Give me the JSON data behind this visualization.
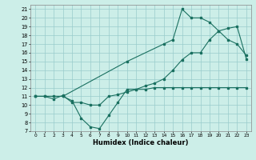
{
  "xlabel": "Humidex (Indice chaleur)",
  "xlim": [
    -0.5,
    23.5
  ],
  "ylim": [
    7,
    21.5
  ],
  "xticks": [
    0,
    1,
    2,
    3,
    4,
    5,
    6,
    7,
    8,
    9,
    10,
    11,
    12,
    13,
    14,
    15,
    16,
    17,
    18,
    19,
    20,
    21,
    22,
    23
  ],
  "yticks": [
    7,
    8,
    9,
    10,
    11,
    12,
    13,
    14,
    15,
    16,
    17,
    18,
    19,
    20,
    21
  ],
  "bg_color": "#cceee8",
  "grid_color": "#99cccc",
  "line_color": "#1a7060",
  "line1_x": [
    0,
    1,
    2,
    3,
    4,
    5,
    6,
    7,
    8,
    9,
    10,
    11,
    12,
    13,
    14,
    15,
    16,
    17,
    18,
    19,
    20,
    21,
    22,
    23
  ],
  "line1_y": [
    11,
    11,
    11,
    11,
    10.5,
    8.5,
    7.5,
    7.3,
    8.8,
    10.3,
    11.8,
    11.8,
    11.8,
    12.0,
    12.0,
    12.0,
    12.0,
    12.0,
    12.0,
    12.0,
    12.0,
    12.0,
    12.0,
    12.0
  ],
  "line2_x": [
    0,
    1,
    2,
    3,
    4,
    5,
    6,
    7,
    8,
    9,
    10,
    11,
    12,
    13,
    14,
    15,
    16,
    17,
    18,
    19,
    20,
    21,
    22,
    23
  ],
  "line2_y": [
    11,
    11,
    10.7,
    11.1,
    10.3,
    10.3,
    10.0,
    10.0,
    11.0,
    11.2,
    11.5,
    11.8,
    12.2,
    12.5,
    13.0,
    14.0,
    15.2,
    16.0,
    16.0,
    17.5,
    18.5,
    18.8,
    19.0,
    15.3
  ],
  "line3_x": [
    0,
    3,
    10,
    14,
    15,
    16,
    17,
    18,
    19,
    20,
    21,
    22,
    23
  ],
  "line3_y": [
    11,
    11,
    15,
    17.0,
    17.5,
    21.0,
    20.0,
    20.0,
    19.5,
    18.5,
    17.5,
    17.0,
    15.7
  ]
}
